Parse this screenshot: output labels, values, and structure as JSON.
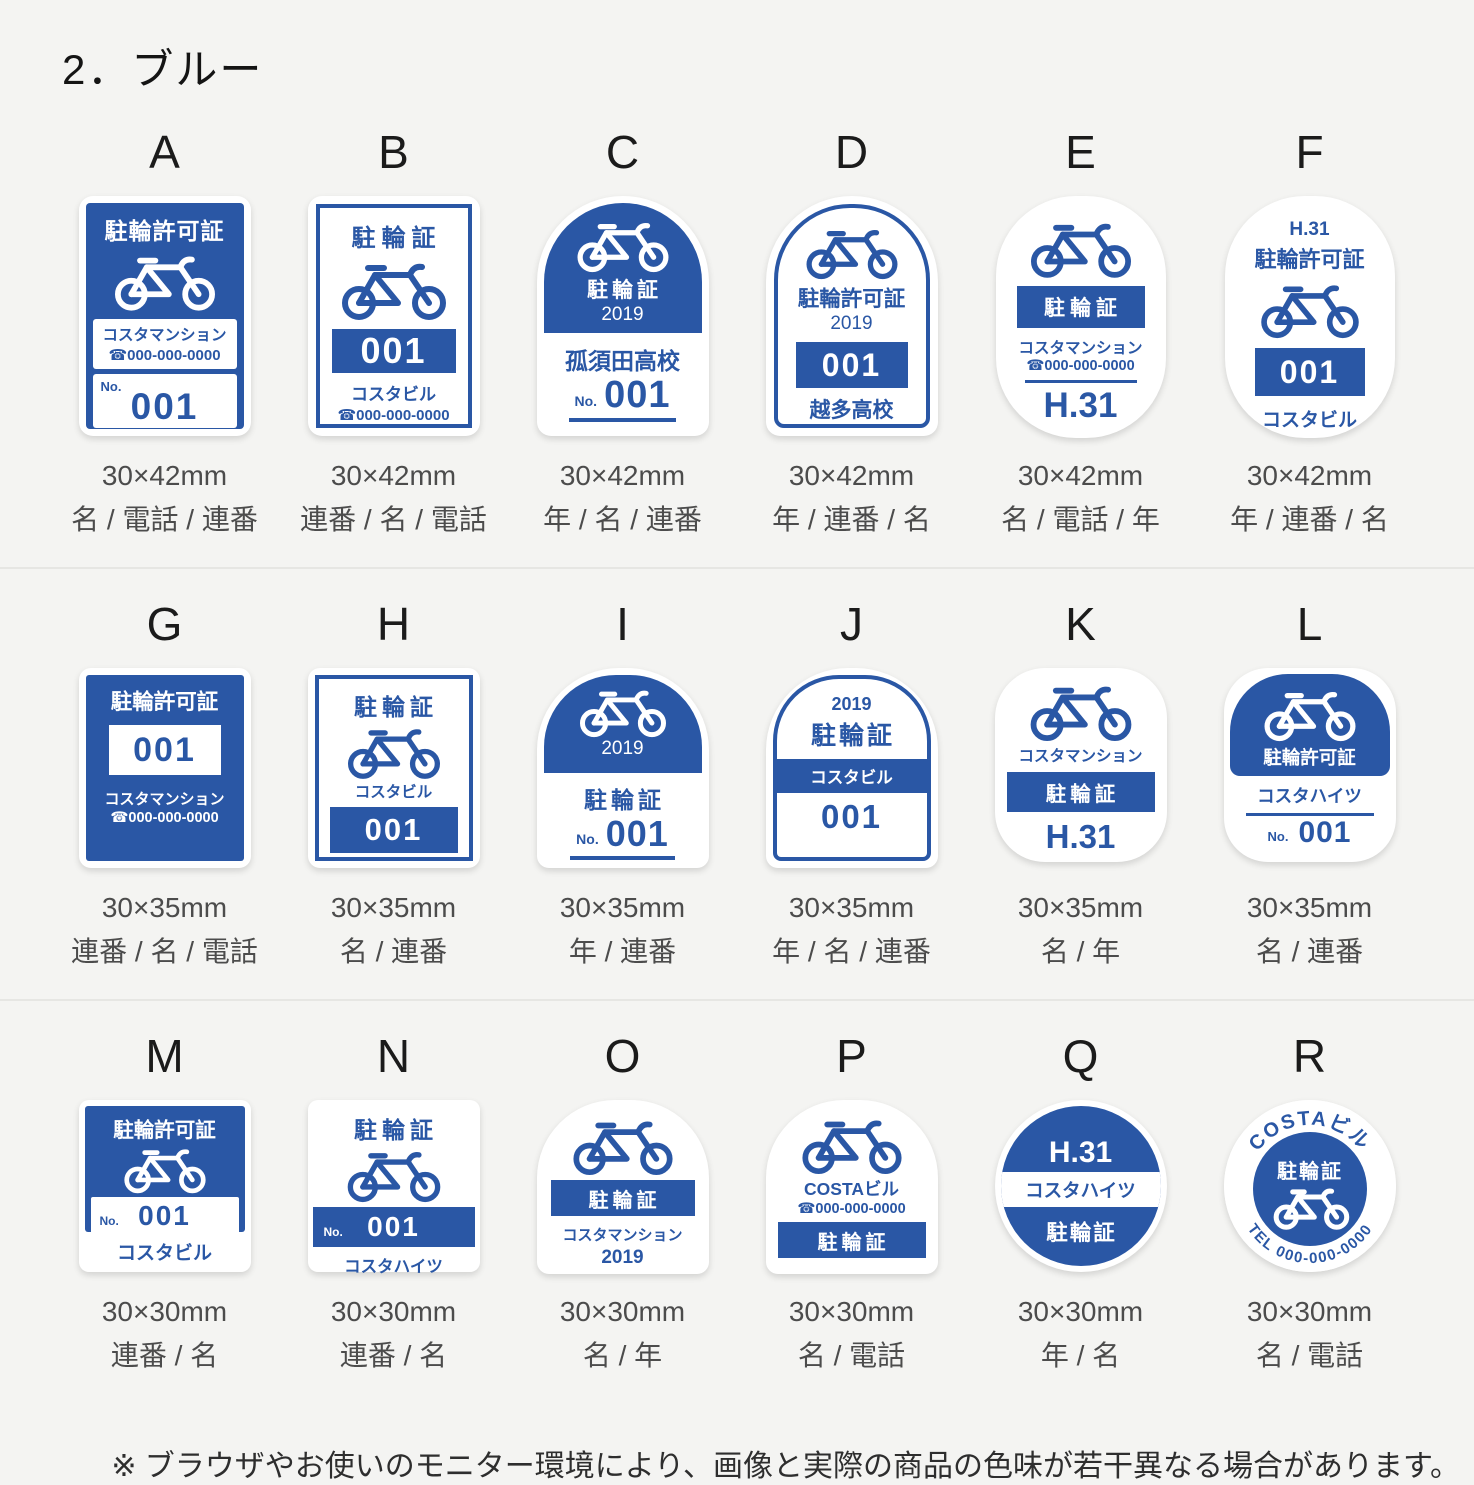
{
  "page": {
    "title": "2．ブルー",
    "footnote": "※ ブラウザやお使いのモニター環境により、画像と実際の商品の色味が若干異なる場合があります。",
    "colors": {
      "accent_blue": "#2a57a5",
      "background": "#f4f4f2",
      "sticker_white": "#ffffff"
    }
  },
  "items": [
    {
      "letter": "A",
      "size": "30×42mm",
      "fields": "名 / 電話 / 連番",
      "s": {
        "title": "駐輪許可証",
        "name": "コスタマンション",
        "phone": "☎000-000-0000",
        "no_label": "No.",
        "number": "001"
      }
    },
    {
      "letter": "B",
      "size": "30×42mm",
      "fields": "連番 / 名 / 電話",
      "s": {
        "title": "駐輪証",
        "number": "001",
        "name": "コスタビル",
        "phone": "☎000-000-0000"
      }
    },
    {
      "letter": "C",
      "size": "30×42mm",
      "fields": "年 / 名 / 連番",
      "s": {
        "title": "駐輪証",
        "year": "2019",
        "name": "孤須田高校",
        "no_label": "No.",
        "number": "001"
      }
    },
    {
      "letter": "D",
      "size": "30×42mm",
      "fields": "年 / 連番 / 名",
      "s": {
        "title": "駐輪許可証",
        "year": "2019",
        "number": "001",
        "name": "越多高校"
      }
    },
    {
      "letter": "E",
      "size": "30×42mm",
      "fields": "名 / 電話 / 年",
      "s": {
        "title": "駐輪証",
        "name": "コスタマンション",
        "phone": "☎000-000-0000",
        "year": "H.31"
      }
    },
    {
      "letter": "F",
      "size": "30×42mm",
      "fields": "年 / 連番 / 名",
      "s": {
        "year": "H.31",
        "title": "駐輪許可証",
        "number": "001",
        "name": "コスタビル"
      }
    },
    {
      "letter": "G",
      "size": "30×35mm",
      "fields": "連番 / 名 / 電話",
      "s": {
        "title": "駐輪許可証",
        "number": "001",
        "name": "コスタマンション",
        "phone": "☎000-000-0000"
      }
    },
    {
      "letter": "H",
      "size": "30×35mm",
      "fields": "名 / 連番",
      "s": {
        "title": "駐輪証",
        "name": "コスタビル",
        "number": "001"
      }
    },
    {
      "letter": "I",
      "size": "30×35mm",
      "fields": "年 / 連番",
      "s": {
        "year": "2019",
        "title": "駐輪証",
        "no_label": "No.",
        "number": "001"
      }
    },
    {
      "letter": "J",
      "size": "30×35mm",
      "fields": "年 / 名 / 連番",
      "s": {
        "year": "2019",
        "title": "駐輪証",
        "name": "コスタビル",
        "number": "001"
      }
    },
    {
      "letter": "K",
      "size": "30×35mm",
      "fields": "名 / 年",
      "s": {
        "name": "コスタマンション",
        "title": "駐輪証",
        "year": "H.31"
      }
    },
    {
      "letter": "L",
      "size": "30×35mm",
      "fields": "名 / 連番",
      "s": {
        "title": "駐輪許可証",
        "name": "コスタハイツ",
        "no_label": "No.",
        "number": "001"
      }
    },
    {
      "letter": "M",
      "size": "30×30mm",
      "fields": "連番 / 名",
      "s": {
        "title": "駐輪許可証",
        "no_label": "No.",
        "number": "001",
        "name": "コスタビル"
      }
    },
    {
      "letter": "N",
      "size": "30×30mm",
      "fields": "連番 / 名",
      "s": {
        "title": "駐輪証",
        "no_label": "No.",
        "number": "001",
        "name": "コスタハイツ"
      }
    },
    {
      "letter": "O",
      "size": "30×30mm",
      "fields": "名 / 年",
      "s": {
        "title": "駐輪証",
        "name": "コスタマンション",
        "year": "2019"
      }
    },
    {
      "letter": "P",
      "size": "30×30mm",
      "fields": "名 / 電話",
      "s": {
        "name": "COSTAビル",
        "phone": "☎000-000-0000",
        "title": "駐輪証"
      }
    },
    {
      "letter": "Q",
      "size": "30×30mm",
      "fields": "年 / 名",
      "s": {
        "year": "H.31",
        "name": "コスタハイツ",
        "title": "駐輪証"
      }
    },
    {
      "letter": "R",
      "size": "30×30mm",
      "fields": "名 / 電話",
      "s": {
        "name": "COSTAビル",
        "title": "駐輪証",
        "phone": "TEL 000-000-0000"
      }
    }
  ]
}
